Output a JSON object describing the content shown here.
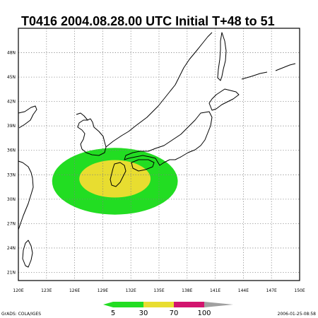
{
  "title": "T0416  2004.08.28.00  UTC  Initial  T+48  to  51",
  "map": {
    "lon_range": [
      120,
      150
    ],
    "lat_range": [
      20,
      51
    ],
    "lon_ticks": [
      "120E",
      "123E",
      "126E",
      "129E",
      "132E",
      "135E",
      "138E",
      "141E",
      "144E",
      "147E",
      "150E"
    ],
    "lat_ticks": [
      "21N",
      "24N",
      "27N",
      "30N",
      "33N",
      "36N",
      "39N",
      "42N",
      "45N",
      "48N"
    ],
    "grid": true,
    "probability_areas": [
      {
        "range": "5-30",
        "color": "#22dd22",
        "center_lon": 130.3,
        "center_lat": 32.2,
        "radius_lon": 6.7,
        "radius_lat": 4.1
      },
      {
        "range": "30-70",
        "color": "#e8dd30",
        "center_lon": 130.3,
        "center_lat": 32.5,
        "radius_lon": 3.8,
        "radius_lat": 2.3
      }
    ]
  },
  "colorbar": {
    "labels": [
      "5",
      "30",
      "70",
      "100"
    ],
    "colors": [
      "#22dd22",
      "#e8dd30",
      "#d2146e",
      "#a0a0a0"
    ]
  },
  "footer": {
    "credit": "GrADS: COLA/IGES",
    "timestamp": "2006-01-25-08:58"
  }
}
